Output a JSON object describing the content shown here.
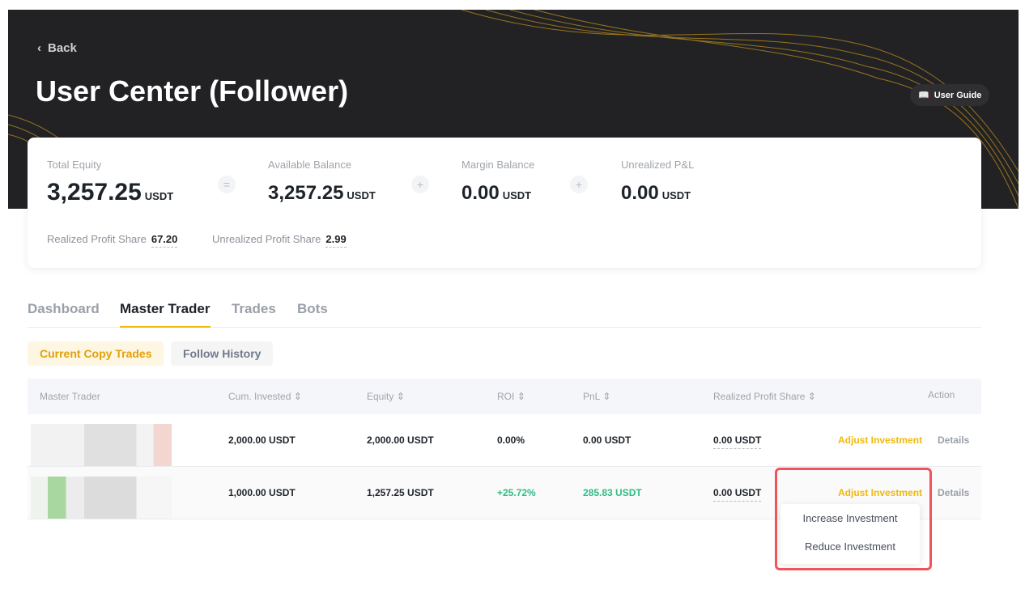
{
  "header": {
    "back_label": "Back",
    "title": "User Center (Follower)",
    "guide_label": "User Guide"
  },
  "summary": {
    "total_equity": {
      "label": "Total Equity",
      "value": "3,257.25",
      "unit": "USDT"
    },
    "op1": "=",
    "available_balance": {
      "label": "Available Balance",
      "value": "3,257.25",
      "unit": "USDT"
    },
    "op2": "+",
    "margin_balance": {
      "label": "Margin Balance",
      "value": "0.00",
      "unit": "USDT"
    },
    "op3": "+",
    "unrealized_pnl": {
      "label": "Unrealized P&L",
      "value": "0.00",
      "unit": "USDT"
    },
    "realized_profit_share": {
      "label": "Realized Profit Share",
      "value": "67.20"
    },
    "unrealized_profit_share": {
      "label": "Unrealized Profit Share",
      "value": "2.99"
    }
  },
  "tabs": [
    {
      "label": "Dashboard"
    },
    {
      "label": "Master Trader",
      "active": true
    },
    {
      "label": "Trades"
    },
    {
      "label": "Bots"
    }
  ],
  "subtabs": [
    {
      "label": "Current Copy Trades",
      "active": true
    },
    {
      "label": "Follow History"
    }
  ],
  "table": {
    "columns": [
      "Master Trader",
      "Cum. Invested",
      "Equity",
      "ROI",
      "PnL",
      "Realized Profit Share",
      "Action"
    ],
    "rows": [
      {
        "cum_invested": "2,000.00 USDT",
        "equity": "2,000.00 USDT",
        "roi": "0.00%",
        "pnl": "0.00 USDT",
        "realized_profit_share": "0.00 USDT",
        "adjust": "Adjust Investment",
        "details": "Details"
      },
      {
        "cum_invested": "1,000.00 USDT",
        "equity": "1,257.25 USDT",
        "roi": "+25.72%",
        "pnl": "285.83 USDT",
        "realized_profit_share": "0.00 USDT",
        "adjust": "Adjust Investment",
        "details": "Details"
      }
    ]
  },
  "dropdown": {
    "items": [
      "Increase Investment",
      "Reduce Investment"
    ]
  },
  "colors": {
    "accent": "#f0b90b",
    "positive": "#2ebd85",
    "highlight": "#f0545a"
  }
}
